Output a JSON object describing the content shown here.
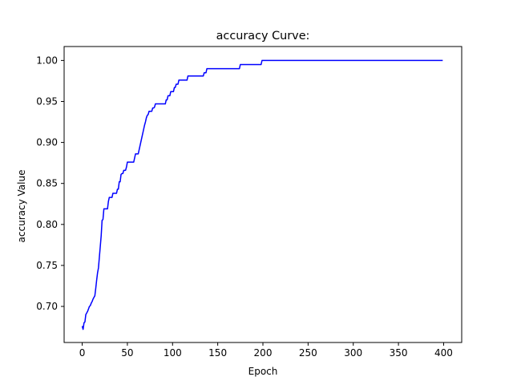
{
  "chart_data": {
    "type": "line",
    "title": "accuracy Curve:",
    "xlabel": "Epoch",
    "ylabel": "accuracy Value",
    "xlim": [
      -20,
      420
    ],
    "ylim": [
      0.656,
      1.017
    ],
    "grid": false,
    "legend": "none",
    "xticks": [
      0,
      50,
      100,
      150,
      200,
      250,
      300,
      350,
      400
    ],
    "xtick_labels": [
      "0",
      "50",
      "100",
      "150",
      "200",
      "250",
      "300",
      "350",
      "400"
    ],
    "yticks": [
      0.7,
      0.75,
      0.8,
      0.85,
      0.9,
      0.95,
      1.0
    ],
    "ytick_labels": [
      "0.70",
      "0.75",
      "0.80",
      "0.85",
      "0.90",
      "0.95",
      "1.00"
    ],
    "series": [
      {
        "color": "#0000ff",
        "x": [
          0,
          1,
          2,
          3,
          4,
          5,
          6,
          7,
          8,
          9,
          10,
          11,
          12,
          13,
          14,
          15,
          16,
          17,
          18,
          19,
          20,
          21,
          22,
          23,
          24,
          25,
          26,
          27,
          28,
          29,
          30,
          31,
          32,
          33,
          34,
          35,
          36,
          37,
          38,
          39,
          40,
          41,
          42,
          43,
          44,
          45,
          46,
          47,
          48,
          49,
          50,
          51,
          52,
          53,
          54,
          55,
          56,
          57,
          58,
          59,
          60,
          61,
          62,
          63,
          64,
          65,
          66,
          67,
          68,
          69,
          70,
          71,
          72,
          73,
          74,
          75,
          76,
          77,
          78,
          79,
          80,
          81,
          82,
          83,
          84,
          85,
          86,
          87,
          88,
          89,
          90,
          91,
          92,
          93,
          94,
          95,
          96,
          97,
          98,
          99,
          100,
          101,
          102,
          103,
          104,
          105,
          106,
          107,
          108,
          109,
          110,
          111,
          112,
          113,
          114,
          115,
          116,
          117,
          118,
          119,
          120,
          121,
          122,
          123,
          124,
          125,
          126,
          127,
          128,
          129,
          130,
          131,
          132,
          133,
          134,
          135,
          136,
          137,
          138,
          139,
          140,
          150,
          160,
          170,
          174,
          175,
          180,
          190,
          198,
          199,
          200,
          250,
          300,
          350,
          399
        ],
        "y": [
          0.676,
          0.672,
          0.68,
          0.681,
          0.69,
          0.692,
          0.694,
          0.697,
          0.7,
          0.701,
          0.704,
          0.706,
          0.709,
          0.711,
          0.713,
          0.722,
          0.732,
          0.741,
          0.747,
          0.76,
          0.773,
          0.786,
          0.805,
          0.806,
          0.819,
          0.819,
          0.819,
          0.819,
          0.819,
          0.828,
          0.833,
          0.833,
          0.833,
          0.833,
          0.838,
          0.838,
          0.838,
          0.838,
          0.838,
          0.843,
          0.843,
          0.852,
          0.852,
          0.861,
          0.862,
          0.862,
          0.866,
          0.866,
          0.866,
          0.87,
          0.876,
          0.876,
          0.876,
          0.876,
          0.876,
          0.876,
          0.876,
          0.876,
          0.881,
          0.886,
          0.886,
          0.886,
          0.886,
          0.891,
          0.896,
          0.901,
          0.906,
          0.911,
          0.916,
          0.921,
          0.925,
          0.93,
          0.933,
          0.934,
          0.938,
          0.938,
          0.938,
          0.938,
          0.942,
          0.942,
          0.943,
          0.947,
          0.947,
          0.947,
          0.947,
          0.947,
          0.947,
          0.947,
          0.947,
          0.947,
          0.947,
          0.947,
          0.947,
          0.952,
          0.952,
          0.957,
          0.957,
          0.957,
          0.962,
          0.962,
          0.962,
          0.962,
          0.967,
          0.967,
          0.971,
          0.971,
          0.971,
          0.976,
          0.976,
          0.976,
          0.976,
          0.976,
          0.976,
          0.976,
          0.976,
          0.976,
          0.976,
          0.981,
          0.981,
          0.981,
          0.981,
          0.981,
          0.981,
          0.981,
          0.981,
          0.981,
          0.981,
          0.981,
          0.981,
          0.981,
          0.981,
          0.981,
          0.981,
          0.981,
          0.981,
          0.985,
          0.985,
          0.985,
          0.99,
          0.99,
          0.99,
          0.99,
          0.99,
          0.99,
          0.99,
          0.995,
          0.995,
          0.995,
          0.995,
          1.0,
          1.0,
          1.0,
          1.0,
          1.0,
          1.0
        ]
      }
    ]
  }
}
